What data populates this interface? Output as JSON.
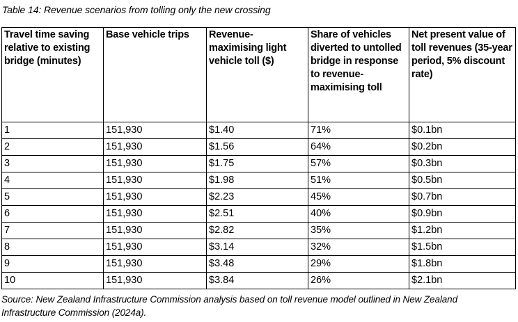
{
  "title": "Table 14: Revenue scenarios from tolling only the new crossing",
  "table": {
    "headers": [
      "Travel time saving relative to existing bridge (minutes)",
      "Base vehicle trips",
      "Revenue-maximising light vehicle toll ($)",
      "Share of vehicles diverted to untolled bridge in response to revenue-maximising toll",
      "Net present value of toll revenues (35-year period, 5% discount rate)"
    ],
    "rows": [
      [
        "1",
        "151,930",
        "$1.40",
        "71%",
        "$0.1bn"
      ],
      [
        "2",
        "151,930",
        "$1.56",
        "64%",
        "$0.2bn"
      ],
      [
        "3",
        "151,930",
        "$1.75",
        "57%",
        "$0.3bn"
      ],
      [
        "4",
        "151,930",
        "$1.98",
        "51%",
        "$0.5bn"
      ],
      [
        "5",
        "151,930",
        "$2.23",
        "45%",
        "$0.7bn"
      ],
      [
        "6",
        "151,930",
        "$2.51",
        "40%",
        "$0.9bn"
      ],
      [
        "7",
        "151,930",
        "$2.82",
        "35%",
        "$1.2bn"
      ],
      [
        "8",
        "151,930",
        "$3.14",
        "32%",
        "$1.5bn"
      ],
      [
        "9",
        "151,930",
        "$3.48",
        "29%",
        "$1.8bn"
      ],
      [
        "10",
        "151,930",
        "$3.84",
        "26%",
        "$2.1bn"
      ]
    ]
  },
  "source": "Source: New Zealand Infrastructure Commission analysis based on toll revenue model outlined in New Zealand Infrastructure Commission (2024a).",
  "colors": {
    "text": "#000000",
    "border": "#000000",
    "background": "#ffffff"
  }
}
